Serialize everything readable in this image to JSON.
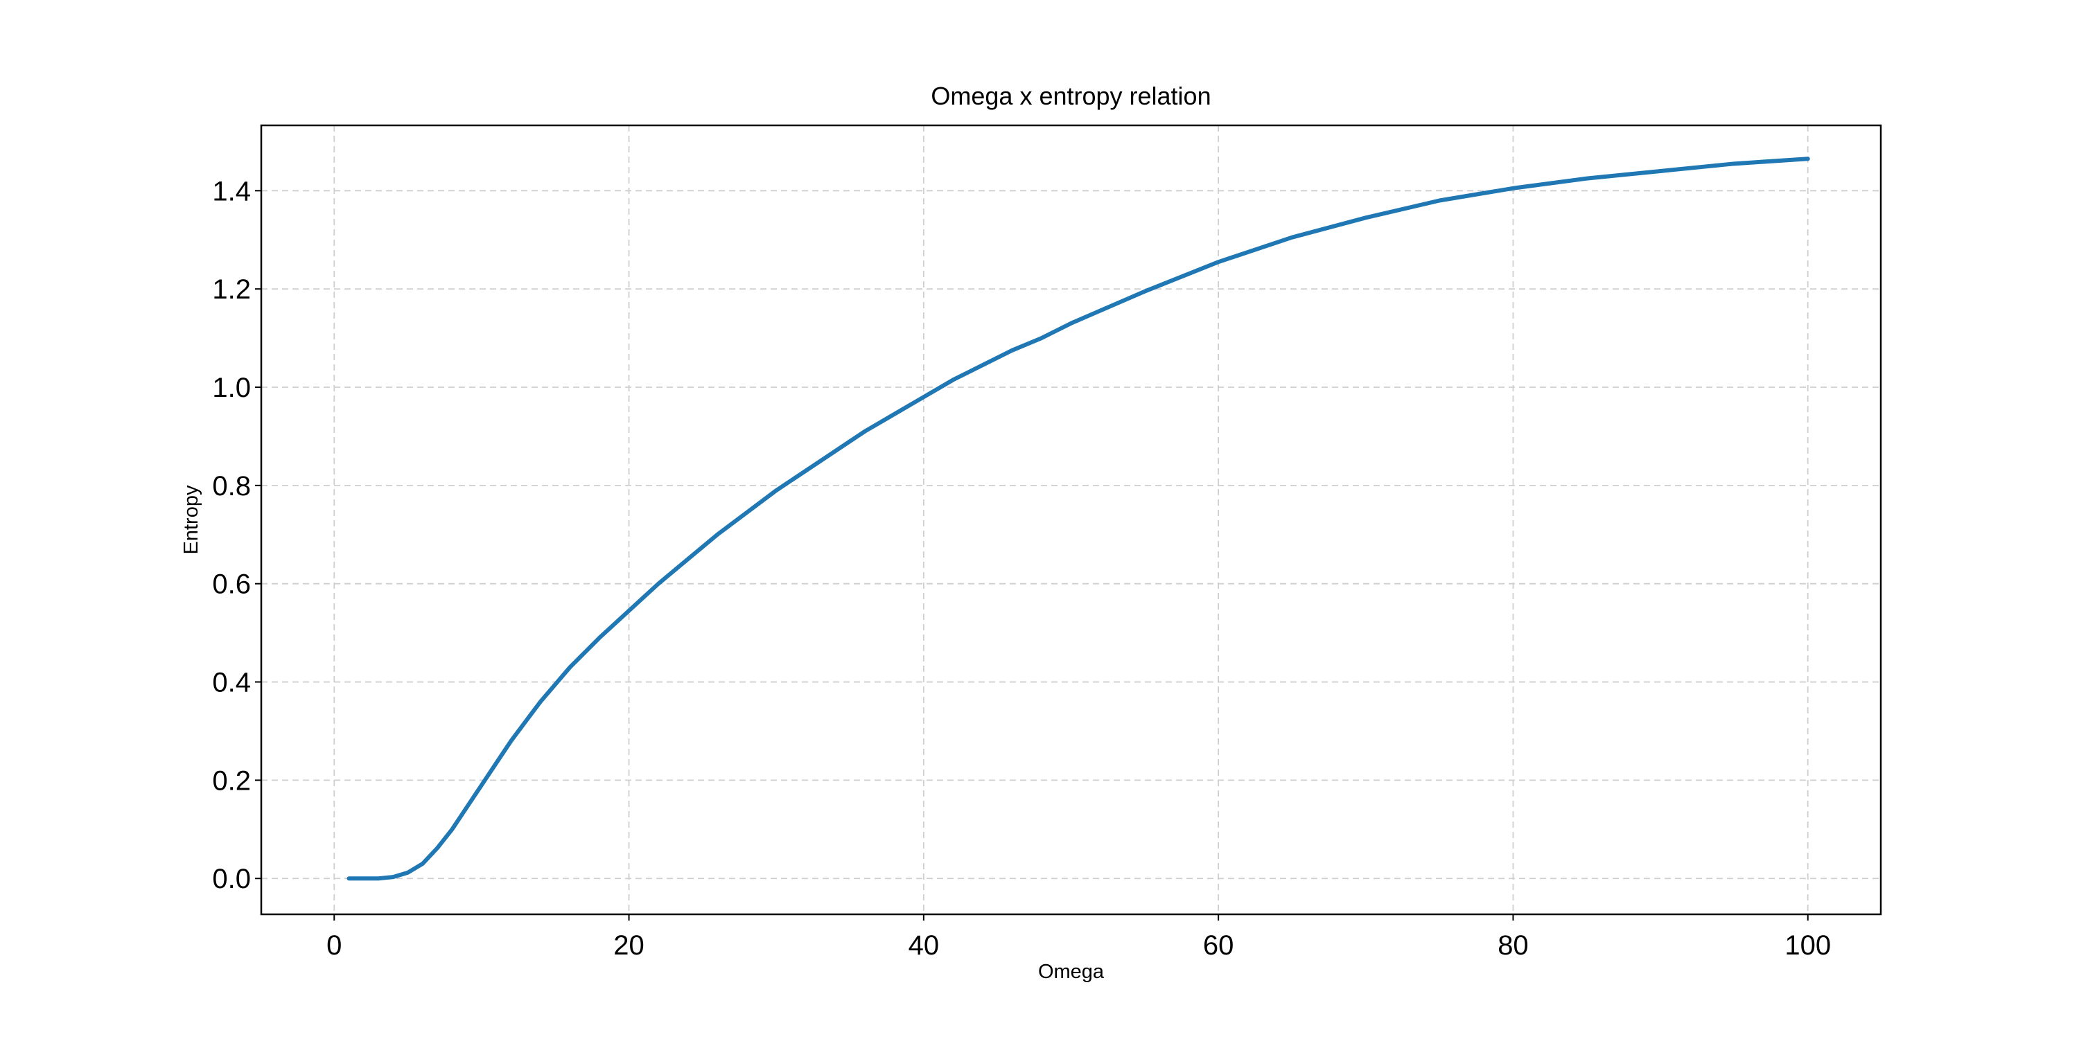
{
  "chart_data": {
    "type": "line",
    "title": "Omega x entropy relation",
    "xlabel": "Omega",
    "ylabel": "Entropy",
    "xlim": [
      -4.95,
      104.95
    ],
    "ylim": [
      -0.073,
      1.533
    ],
    "xticks": [
      0,
      20,
      40,
      60,
      80,
      100
    ],
    "xtick_labels": [
      "0",
      "20",
      "40",
      "60",
      "80",
      "100"
    ],
    "yticks": [
      0.0,
      0.2,
      0.4,
      0.6,
      0.8,
      1.0,
      1.2,
      1.4
    ],
    "ytick_labels": [
      "0.0",
      "0.2",
      "0.4",
      "0.6",
      "0.8",
      "1.0",
      "1.2",
      "1.4"
    ],
    "grid": true,
    "legend": "none",
    "colors": {
      "series": "#1f77b4",
      "grid": "#cfcfcf",
      "frame": "#000000"
    },
    "series": [
      {
        "color": "#1f77b4",
        "x": [
          1,
          2,
          3,
          4,
          5,
          6,
          7,
          8,
          9,
          10,
          11,
          12,
          14,
          16,
          18,
          20,
          22,
          24,
          26,
          28,
          30,
          32,
          34,
          36,
          38,
          40,
          42,
          44,
          46,
          48,
          50,
          55,
          60,
          65,
          70,
          75,
          80,
          85,
          90,
          95,
          100
        ],
        "y": [
          0.0,
          0.0,
          0.0,
          0.003,
          0.012,
          0.03,
          0.062,
          0.1,
          0.145,
          0.19,
          0.235,
          0.28,
          0.36,
          0.43,
          0.49,
          0.545,
          0.6,
          0.65,
          0.7,
          0.745,
          0.79,
          0.83,
          0.87,
          0.91,
          0.945,
          0.98,
          1.015,
          1.045,
          1.075,
          1.1,
          1.13,
          1.195,
          1.255,
          1.305,
          1.345,
          1.38,
          1.405,
          1.425,
          1.44,
          1.455,
          1.465
        ]
      }
    ]
  }
}
